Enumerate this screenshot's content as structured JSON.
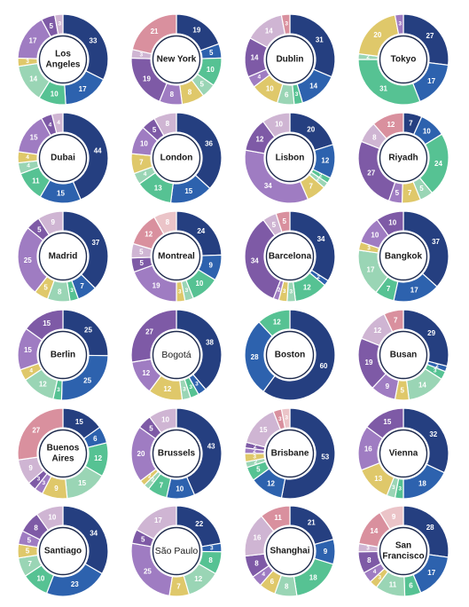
{
  "palette": [
    "#253f80",
    "#2d62ae",
    "#56c293",
    "#9ad5b5",
    "#dfc86a",
    "#9f7cc2",
    "#7e5aa6",
    "#cfb5d3",
    "#d9909e",
    "#ebc4c8",
    "#c6c8cc"
  ],
  "chart_data": [
    {
      "type": "pie",
      "title": "Los\nAngeles",
      "values": [
        33,
        17,
        10,
        14,
        3,
        17,
        5,
        3
      ]
    },
    {
      "type": "pie",
      "title": "New York",
      "values": [
        19,
        5,
        10,
        5,
        8,
        8,
        19,
        3,
        21
      ]
    },
    {
      "type": "pie",
      "title": "Dublin",
      "values": [
        31,
        14,
        3,
        6,
        10,
        4,
        14,
        14,
        3
      ]
    },
    {
      "type": "pie",
      "title": "Tokyo",
      "values": [
        27,
        17,
        31,
        2,
        20,
        3
      ]
    },
    {
      "type": "pie",
      "title": "Dubai",
      "values": [
        44,
        15,
        11,
        4,
        4,
        15,
        4,
        4
      ]
    },
    {
      "type": "pie",
      "title": "London",
      "values": [
        36,
        15,
        13,
        4,
        7,
        10,
        5,
        8
      ]
    },
    {
      "type": "pie",
      "title": "Lisbon",
      "values": [
        20,
        12,
        2,
        2,
        7,
        34,
        12,
        10
      ]
    },
    {
      "type": "pie",
      "title": "Riyadh",
      "values": [
        7,
        10,
        24,
        5,
        7,
        5,
        27,
        8,
        12
      ]
    },
    {
      "type": "pie",
      "title": "Madrid",
      "values": [
        37,
        7,
        3,
        8,
        5,
        25,
        5,
        9
      ]
    },
    {
      "type": "pie",
      "title": "Montreal",
      "values": [
        24,
        9,
        10,
        3,
        3,
        19,
        5,
        5,
        12,
        8
      ]
    },
    {
      "type": "pie",
      "title": "Barcelona",
      "values": [
        34,
        2,
        12,
        3,
        3,
        2,
        34,
        5,
        5
      ]
    },
    {
      "type": "pie",
      "title": "Bangkok",
      "values": [
        37,
        17,
        7,
        17,
        3,
        10,
        10
      ]
    },
    {
      "type": "pie",
      "title": "Berlin",
      "values": [
        25,
        25,
        3,
        12,
        4,
        15,
        15
      ]
    },
    {
      "type": "pie",
      "title": "Bogotá",
      "values": [
        38,
        3,
        3,
        3,
        12,
        12,
        27
      ]
    },
    {
      "type": "pie",
      "title": "Boston",
      "values": [
        60,
        28,
        12
      ]
    },
    {
      "type": "pie",
      "title": "Busan",
      "values": [
        29,
        2,
        3,
        14,
        5,
        9,
        19,
        12,
        7
      ]
    },
    {
      "type": "pie",
      "title": "Buenos\nAires",
      "values": [
        15,
        6,
        12,
        15,
        9,
        3,
        3,
        9,
        27
      ]
    },
    {
      "type": "pie",
      "title": "Brussels",
      "values": [
        43,
        10,
        7,
        2,
        2,
        20,
        5,
        10
      ]
    },
    {
      "type": "pie",
      "title": "Brisbane",
      "values": [
        53,
        12,
        5,
        2,
        3,
        2,
        2,
        15,
        3,
        3
      ]
    },
    {
      "type": "pie",
      "title": "Vienna",
      "values": [
        32,
        18,
        3,
        3,
        13,
        16,
        15
      ]
    },
    {
      "type": "pie",
      "title": "Santiago",
      "values": [
        34,
        23,
        10,
        7,
        5,
        5,
        8,
        10
      ]
    },
    {
      "type": "pie",
      "title": "São Paulo",
      "values": [
        22,
        3,
        8,
        12,
        7,
        25,
        5,
        17
      ]
    },
    {
      "type": "pie",
      "title": "Shanghai",
      "values": [
        21,
        9,
        18,
        8,
        6,
        4,
        8,
        16,
        11
      ]
    },
    {
      "type": "pie",
      "title": "San\nFrancisco",
      "values": [
        28,
        17,
        6,
        11,
        3,
        4,
        8,
        3,
        14,
        9
      ]
    }
  ]
}
